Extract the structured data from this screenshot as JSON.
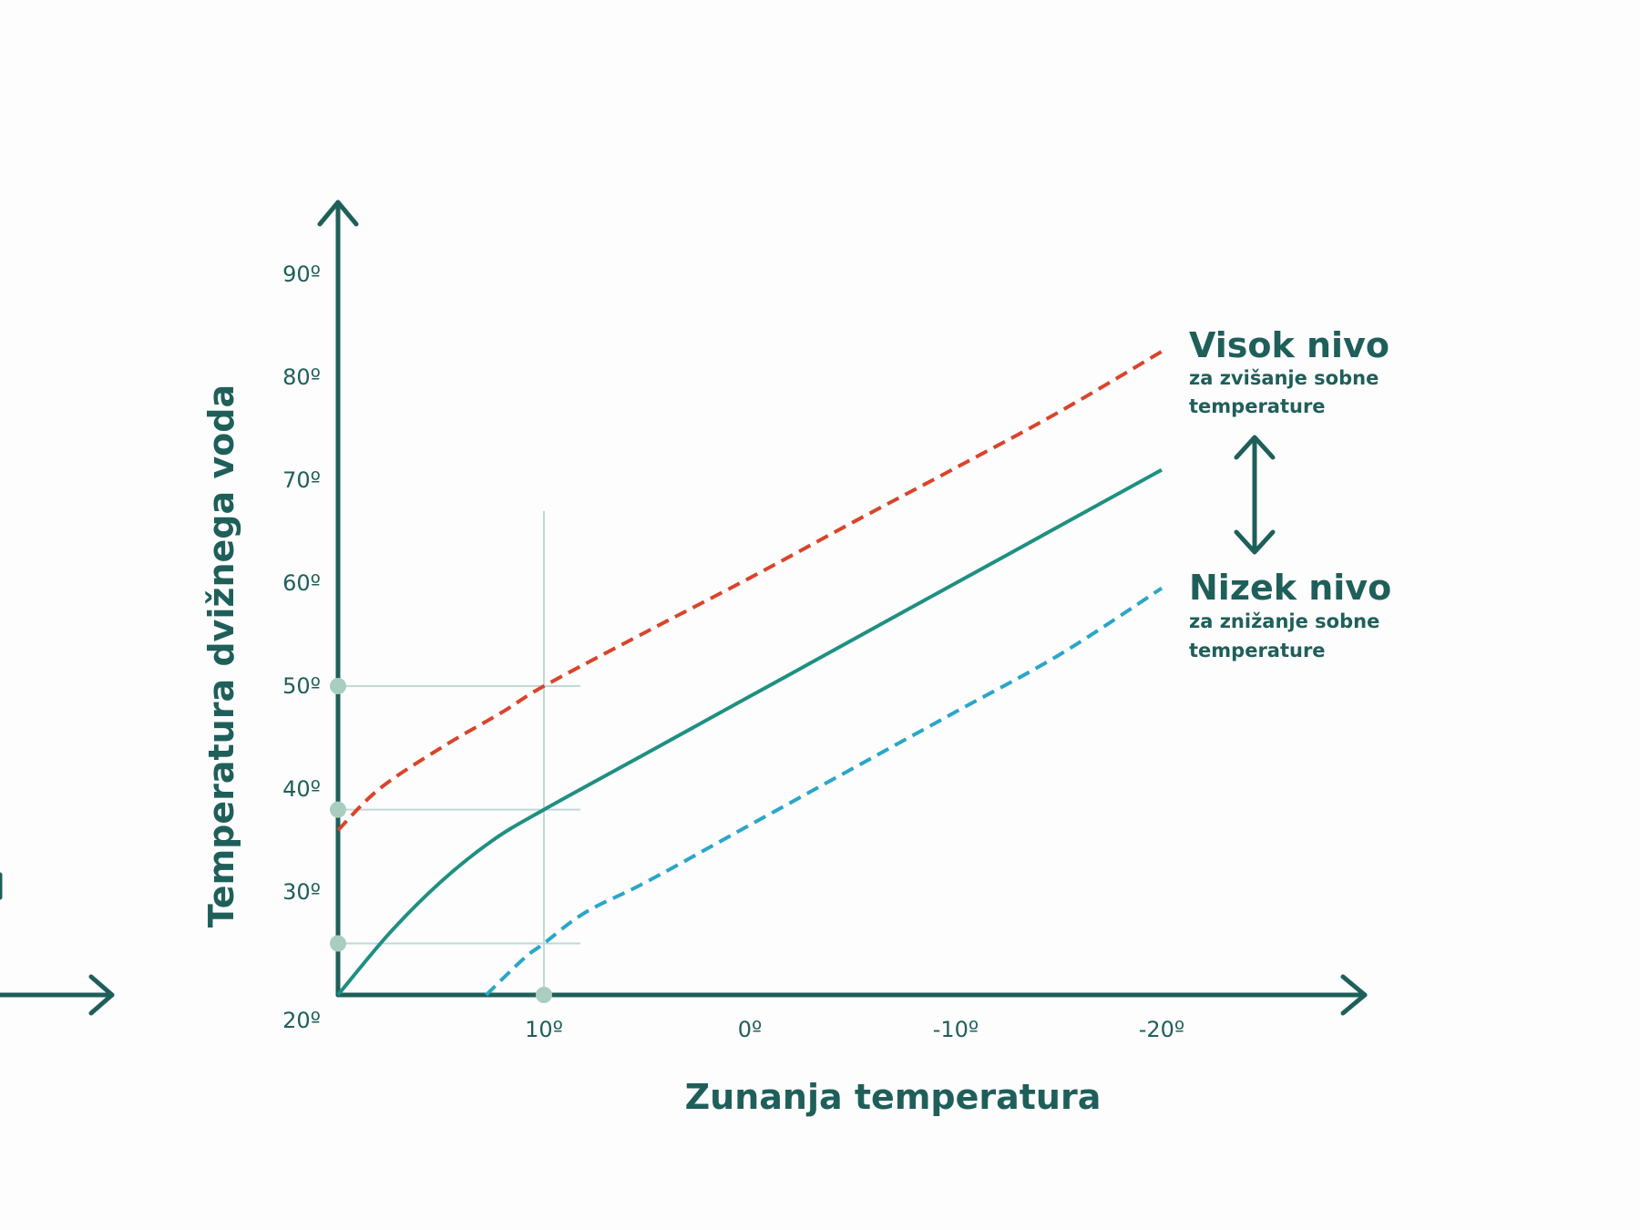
{
  "chart_data": {
    "type": "line",
    "xlabel": "Zunanja temperatura",
    "ylabel": "Temperatura dvižnega voda",
    "x_ticks": [
      {
        "value": 10,
        "label": "10º"
      },
      {
        "value": 0,
        "label": "0º"
      },
      {
        "value": -10,
        "label": "-10º"
      },
      {
        "value": -20,
        "label": "-20º"
      }
    ],
    "y_ticks": [
      {
        "value": 20,
        "label": "20º"
      },
      {
        "value": 30,
        "label": "30º"
      },
      {
        "value": 40,
        "label": "40º"
      },
      {
        "value": 50,
        "label": "50º"
      },
      {
        "value": 60,
        "label": "60º"
      },
      {
        "value": 70,
        "label": "70º"
      },
      {
        "value": 80,
        "label": "80º"
      },
      {
        "value": 90,
        "label": "90º"
      }
    ],
    "xlim": [
      20,
      -30
    ],
    "ylim": [
      20,
      95
    ],
    "x_reversed": true,
    "grid": false,
    "series": [
      {
        "style": "dashed",
        "color": "#d9442b",
        "points": [
          [
            20,
            36
          ],
          [
            18,
            40
          ],
          [
            15,
            44
          ],
          [
            12,
            47.5
          ],
          [
            10,
            50
          ],
          [
            5,
            55.3
          ],
          [
            0,
            60.5
          ],
          [
            -5,
            65.9
          ],
          [
            -10,
            71.2
          ],
          [
            -15,
            76.6
          ],
          [
            -20,
            82.5
          ]
        ]
      },
      {
        "style": "solid",
        "color": "#1e9082",
        "points": [
          [
            20,
            20
          ],
          [
            17.5,
            26
          ],
          [
            15,
            31
          ],
          [
            12.5,
            35
          ],
          [
            10,
            38
          ],
          [
            5,
            43.5
          ],
          [
            0,
            49
          ],
          [
            -5,
            54.5
          ],
          [
            -10,
            60
          ],
          [
            -15,
            65.5
          ],
          [
            -20,
            71
          ]
        ]
      },
      {
        "style": "dashed",
        "color": "#2aa6c8",
        "points": [
          [
            12.8,
            20
          ],
          [
            11,
            23.5
          ],
          [
            10,
            25
          ],
          [
            8,
            28
          ],
          [
            5,
            31
          ],
          [
            0,
            36.5
          ],
          [
            -5,
            42
          ],
          [
            -10,
            47.5
          ],
          [
            -15,
            53
          ],
          [
            -20,
            59.5
          ]
        ]
      }
    ],
    "reference": {
      "x": 10,
      "y_values": [
        50,
        38,
        25
      ],
      "marker_color": "#a9cdbf",
      "line_color": "#bfd8d6"
    },
    "annotations": {
      "high": {
        "title": "Visok nivo",
        "line1": "za zvišanje sobne",
        "line2": "temperature"
      },
      "low": {
        "title": "Nizek nivo",
        "line1": "za znižanje sobne",
        "line2": "temperature"
      }
    },
    "axis_color": "#1f5f5a"
  }
}
